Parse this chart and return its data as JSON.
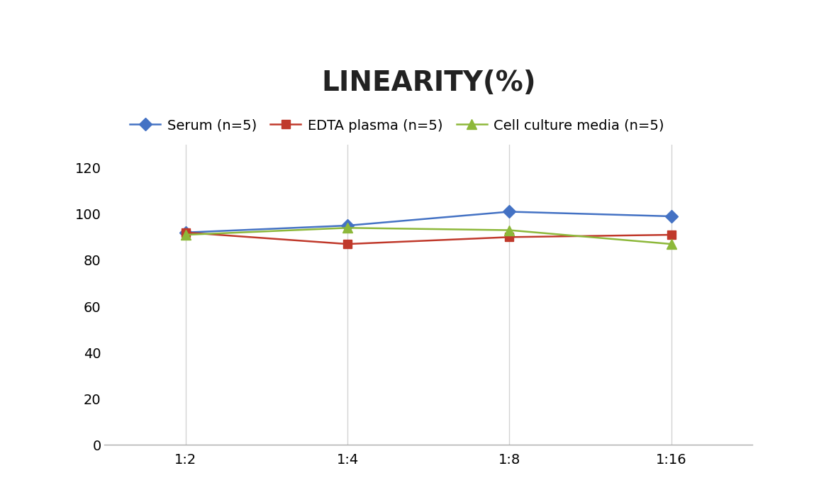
{
  "title": "LINEARITY(%)",
  "title_fontsize": 28,
  "title_fontweight": "bold",
  "x_labels": [
    "1:2",
    "1:4",
    "1:8",
    "1:16"
  ],
  "x_positions": [
    0,
    1,
    2,
    3
  ],
  "series": [
    {
      "label": "Serum (n=5)",
      "values": [
        92,
        95,
        101,
        99
      ],
      "color": "#4472C4",
      "marker": "D",
      "markersize": 9,
      "linewidth": 1.8
    },
    {
      "label": "EDTA plasma (n=5)",
      "values": [
        92,
        87,
        90,
        91
      ],
      "color": "#C0392B",
      "marker": "s",
      "markersize": 9,
      "linewidth": 1.8
    },
    {
      "label": "Cell culture media (n=5)",
      "values": [
        91,
        94,
        93,
        87
      ],
      "color": "#8DB83A",
      "marker": "^",
      "markersize": 10,
      "linewidth": 1.8
    }
  ],
  "ylim": [
    0,
    130
  ],
  "yticks": [
    0,
    20,
    40,
    60,
    80,
    100,
    120
  ],
  "background_color": "#ffffff",
  "grid_color": "#d3d3d3",
  "legend_fontsize": 14,
  "tick_fontsize": 14
}
